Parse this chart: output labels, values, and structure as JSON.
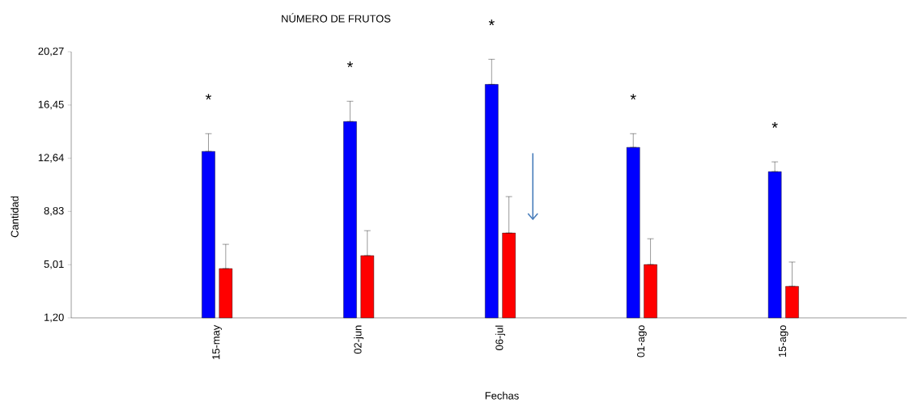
{
  "chart_data": {
    "type": "bar",
    "title": "NÚMERO DE FRUTOS",
    "xlabel": "Fechas",
    "ylabel": "Cantidad",
    "categories": [
      "15-may",
      "02-jun",
      "06-jul",
      "01-ago",
      "15-ago"
    ],
    "series": [
      {
        "color": "#0000ff",
        "values": [
          13.13,
          15.27,
          17.93,
          13.42,
          11.68
        ],
        "errors": [
          [
            13.13,
            14.4
          ],
          [
            15.27,
            16.72
          ],
          [
            17.93,
            19.73
          ],
          [
            13.42,
            14.4
          ],
          [
            11.68,
            12.38
          ]
        ]
      },
      {
        "color": "#ff0000",
        "values": [
          4.73,
          5.66,
          7.28,
          5.02,
          3.46
        ],
        "errors": [
          [
            4.73,
            6.47
          ],
          [
            5.66,
            7.45
          ],
          [
            7.28,
            9.89
          ],
          [
            5.02,
            6.87
          ],
          [
            3.46,
            5.2
          ]
        ]
      }
    ],
    "ylim": [
      1.2,
      20.27
    ],
    "yticks": [
      {
        "value": 1.2,
        "label": "1,20"
      },
      {
        "value": 5.01,
        "label": "5,01"
      },
      {
        "value": 8.83,
        "label": "8,83"
      },
      {
        "value": 12.64,
        "label": "12,64"
      },
      {
        "value": 16.45,
        "label": "16,45"
      },
      {
        "value": 20.27,
        "label": "20,27"
      }
    ],
    "grid": false,
    "annotations": [
      "*",
      "*",
      "*",
      "*",
      "*"
    ]
  }
}
